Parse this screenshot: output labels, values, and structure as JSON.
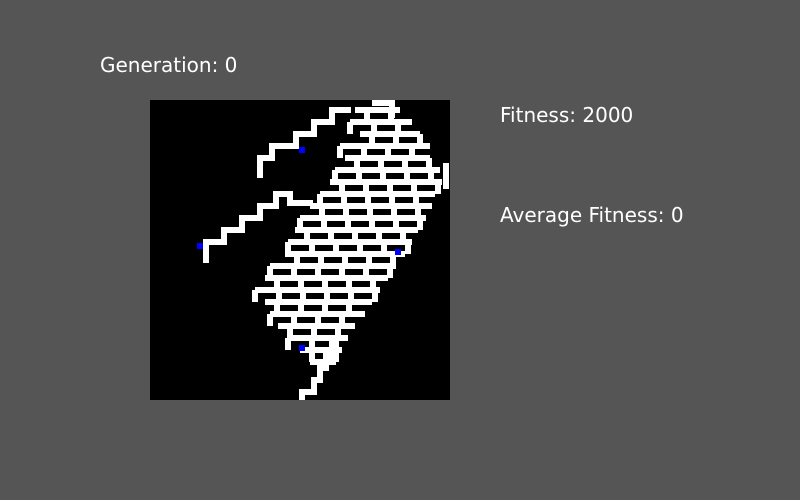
{
  "hud": {
    "generation_label": "Generation: 0",
    "fitness_label": "Fitness: 2000",
    "average_fitness_label": "Average Fitness: 0"
  },
  "colors": {
    "background": "#555555",
    "grid_background": "#000000",
    "path": "#ffffff",
    "agent": "#0000ff"
  }
}
